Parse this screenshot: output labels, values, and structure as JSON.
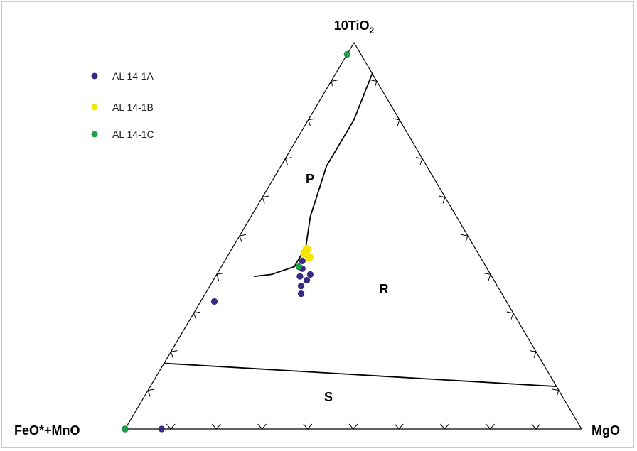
{
  "chart_data": {
    "type": "scatter",
    "subtype": "ternary",
    "vertices": {
      "top": {
        "base": "10TiO",
        "subscript": "2"
      },
      "bottom_left": "FeO*+MnO",
      "bottom_right": "MgO"
    },
    "fields": [
      "P",
      "R",
      "S"
    ],
    "legend": {
      "placement": "top-left"
    },
    "series": [
      {
        "name": "AL 14-1A",
        "color": "#3a2a86",
        "points": [
          {
            "ti": 0.435,
            "fe": 0.395,
            "mg": 0.17
          },
          {
            "ti": 0.415,
            "fe": 0.405,
            "mg": 0.18
          },
          {
            "ti": 0.4,
            "fe": 0.395,
            "mg": 0.205
          },
          {
            "ti": 0.395,
            "fe": 0.42,
            "mg": 0.185
          },
          {
            "ti": 0.385,
            "fe": 0.41,
            "mg": 0.205
          },
          {
            "ti": 0.37,
            "fe": 0.43,
            "mg": 0.2
          },
          {
            "ti": 0.35,
            "fe": 0.44,
            "mg": 0.21
          },
          {
            "ti": 0.33,
            "fe": 0.64,
            "mg": 0.03
          },
          {
            "ti": 0.0,
            "fe": 0.92,
            "mg": 0.08
          },
          {
            "ti": 0.0,
            "fe": 1.0,
            "mg": 0.0
          }
        ]
      },
      {
        "name": "AL 14-1B",
        "color": "#f5e400",
        "points": [
          {
            "ti": 0.465,
            "fe": 0.37,
            "mg": 0.165
          },
          {
            "ti": 0.455,
            "fe": 0.38,
            "mg": 0.165
          },
          {
            "ti": 0.445,
            "fe": 0.375,
            "mg": 0.18
          }
        ]
      },
      {
        "name": "AL 14-1C",
        "color": "#1aa14a",
        "points": [
          {
            "ti": 0.97,
            "fe": 0.03,
            "mg": 0.0
          },
          {
            "ti": 0.42,
            "fe": 0.41,
            "mg": 0.17
          },
          {
            "ti": 0.0,
            "fe": 1.0,
            "mg": 0.0
          }
        ]
      }
    ],
    "boundaries": [
      {
        "name": "P-R",
        "points": [
          {
            "ti": 0.92,
            "fe": 0.0,
            "mg": 0.08
          },
          {
            "ti": 0.8,
            "fe": 0.1,
            "mg": 0.1
          },
          {
            "ti": 0.68,
            "fe": 0.22,
            "mg": 0.1
          },
          {
            "ti": 0.55,
            "fe": 0.32,
            "mg": 0.13
          },
          {
            "ti": 0.47,
            "fe": 0.37,
            "mg": 0.16
          },
          {
            "ti": 0.42,
            "fe": 0.42,
            "mg": 0.16
          },
          {
            "ti": 0.4,
            "fe": 0.48,
            "mg": 0.12
          },
          {
            "ti": 0.395,
            "fe": 0.52,
            "mg": 0.085
          }
        ]
      },
      {
        "name": "R-S",
        "points": [
          {
            "ti": 0.17,
            "fe": 0.83,
            "mg": 0.0
          },
          {
            "ti": 0.11,
            "fe": 0.0,
            "mg": 0.89
          }
        ]
      }
    ]
  }
}
